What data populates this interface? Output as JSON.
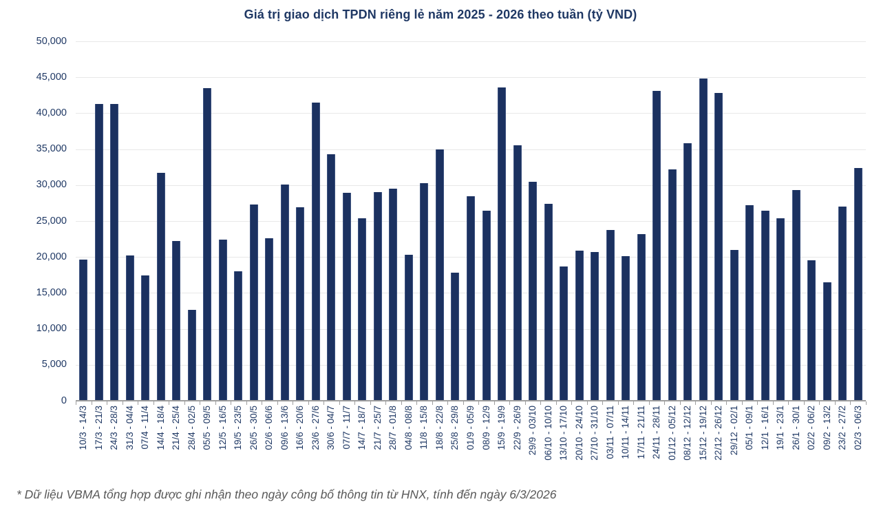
{
  "footnote": "* Dữ liệu VBMA tổng hợp được ghi nhận theo ngày công bố thông tin từ HNX, tính đến ngày 6/3/2026",
  "colors": {
    "bar": "#1B3160",
    "bar_edge": "#3E5380",
    "text": "#1F3864",
    "grid": "#E8E8E8",
    "axis": "#9E9E9E",
    "footnote": "#595959"
  },
  "chart_data": {
    "type": "bar",
    "title": "Giá trị giao dịch TPDN riêng lẻ năm 2025 - 2026 theo tuần (tỷ VND)",
    "xlabel": "",
    "ylabel": "",
    "ylim": [
      0,
      50000
    ],
    "ytick_step": 5000,
    "ytick_labels": [
      "0",
      "5,000",
      "10,000",
      "15,000",
      "20,000",
      "25,000",
      "30,000",
      "35,000",
      "40,000",
      "45,000",
      "50,000"
    ],
    "grid": true,
    "legend": false,
    "categories": [
      "10/3 - 14/3",
      "17/3 - 21/3",
      "24/3 - 28/3",
      "31/3 - 04/4",
      "07/4 - 11/4",
      "14/4 - 18/4",
      "21/4 - 25/4",
      "28/4 - 02/5",
      "05/5 - 09/5",
      "12/5 - 16/5",
      "19/5 - 23/5",
      "26/5 - 30/5",
      "02/6 - 06/6",
      "09/6 - 13/6",
      "16/6 - 20/6",
      "23/6 - 27/6",
      "30/6 - 04/7",
      "07/7 - 11/7",
      "14/7 - 18/7",
      "21/7 - 25/7",
      "28/7 - 01/8",
      "04/8 - 08/8",
      "11/8 - 15/8",
      "18/8 - 22/8",
      "25/8 - 29/8",
      "01/9 - 05/9",
      "08/9 - 12/9",
      "15/9 - 19/9",
      "22/9 - 26/9",
      "29/9 - 03/10",
      "06/10 - 10/10",
      "13/10 - 17/10",
      "20/10 - 24/10",
      "27/10 - 31/10",
      "03/11 - 07/11",
      "10/11 - 14/11",
      "17/11 - 21/11",
      "24/11 - 28/11",
      "01/12 - 05/12",
      "08/12 - 12/12",
      "15/12 - 19/12",
      "22/12 - 26/12",
      "29/12 - 02/1",
      "05/1 - 09/1",
      "12/1 - 16/1",
      "19/1 - 23/1",
      "26/1 - 30/1",
      "02/2 - 06/2",
      "09/2 - 13/2",
      "23/2 - 27/2",
      "02/3 - 06/3"
    ],
    "values": [
      19600,
      41300,
      41250,
      20250,
      17450,
      31700,
      22250,
      12650,
      43500,
      22450,
      18000,
      27300,
      22650,
      30050,
      26950,
      41500,
      34300,
      28900,
      25350,
      29000,
      29500,
      20300,
      30300,
      34950,
      17800,
      28450,
      26450,
      43600,
      35550,
      30450,
      27400,
      18650,
      20900,
      20650,
      23750,
      20150,
      23200,
      43100,
      32200,
      35800,
      44800,
      42850,
      20950,
      27250,
      26450,
      25350,
      29350,
      19500,
      16450,
      27050,
      32400
    ]
  }
}
